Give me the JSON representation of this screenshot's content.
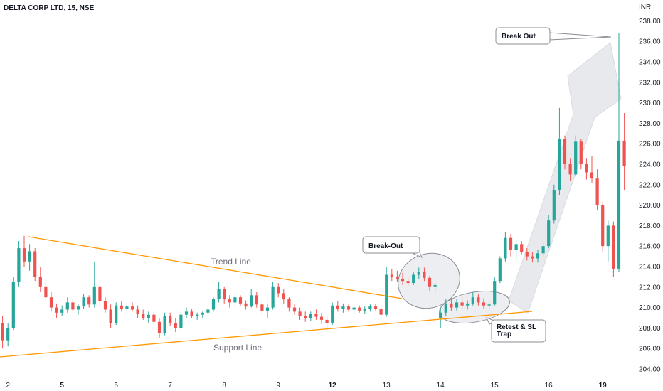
{
  "header": {
    "symbol": "DELTA CORP LTD, 15, NSE"
  },
  "currency_label": "INR",
  "colors": {
    "up": "#26a69a",
    "down": "#ef5350",
    "trend": "#ff9800",
    "arrow": "#e3e5ea",
    "bubble": "#e6e8ec"
  },
  "chart_data": {
    "type": "candlestick",
    "title": "DELTA CORP LTD, 15, NSE",
    "ylabel": "INR",
    "ylim": [
      203.5,
      239.5
    ],
    "y_ticks": [
      "204.00",
      "206.00",
      "208.00",
      "210.00",
      "212.00",
      "214.00",
      "216.00",
      "218.00",
      "220.00",
      "222.00",
      "224.00",
      "226.00",
      "228.00",
      "230.00",
      "232.00",
      "234.00",
      "236.00",
      "238.00"
    ],
    "x_ticks": [
      {
        "label": "2",
        "bar": 2,
        "bold": false
      },
      {
        "label": "5",
        "bar": 12,
        "bold": true
      },
      {
        "label": "6",
        "bar": 22,
        "bold": false
      },
      {
        "label": "7",
        "bar": 32,
        "bold": false
      },
      {
        "label": "8",
        "bar": 42,
        "bold": false
      },
      {
        "label": "9",
        "bar": 52,
        "bold": false
      },
      {
        "label": "12",
        "bar": 62,
        "bold": true
      },
      {
        "label": "13",
        "bar": 72,
        "bold": false
      },
      {
        "label": "14",
        "bar": 82,
        "bold": false
      },
      {
        "label": "15",
        "bar": 92,
        "bold": false
      },
      {
        "label": "16",
        "bar": 102,
        "bold": false
      },
      {
        "label": "19",
        "bar": 112,
        "bold": true
      }
    ],
    "candles": [
      [
        210.0,
        210.5,
        208.0,
        208.5
      ],
      [
        208.5,
        209.2,
        206.0,
        206.8
      ],
      [
        206.8,
        208.5,
        206.2,
        208.0
      ],
      [
        208.0,
        213.0,
        207.8,
        212.5
      ],
      [
        212.5,
        216.5,
        212.0,
        215.8
      ],
      [
        215.8,
        217.0,
        214.0,
        214.5
      ],
      [
        214.5,
        216.2,
        213.6,
        215.5
      ],
      [
        215.5,
        215.8,
        212.6,
        213.0
      ],
      [
        213.0,
        214.0,
        211.5,
        212.0
      ],
      [
        212.0,
        212.8,
        210.6,
        211.0
      ],
      [
        211.0,
        211.5,
        209.6,
        210.0
      ],
      [
        210.0,
        210.4,
        209.0,
        209.5
      ],
      [
        209.5,
        210.2,
        209.2,
        209.8
      ],
      [
        209.8,
        211.0,
        209.5,
        210.5
      ],
      [
        210.5,
        210.8,
        209.5,
        209.8
      ],
      [
        209.8,
        210.3,
        209.3,
        210.1
      ],
      [
        210.1,
        211.3,
        209.9,
        211.0
      ],
      [
        211.0,
        211.2,
        210.0,
        210.3
      ],
      [
        210.3,
        214.5,
        210.0,
        212.0
      ],
      [
        212.0,
        212.5,
        210.2,
        210.6
      ],
      [
        210.6,
        211.0,
        209.5,
        209.8
      ],
      [
        209.8,
        210.3,
        208.0,
        208.5
      ],
      [
        208.5,
        210.5,
        208.3,
        210.2
      ],
      [
        210.2,
        210.6,
        209.6,
        209.9
      ],
      [
        209.9,
        210.4,
        209.4,
        210.1
      ],
      [
        210.1,
        210.5,
        209.6,
        209.8
      ],
      [
        209.8,
        210.2,
        209.0,
        209.4
      ],
      [
        209.4,
        209.8,
        208.8,
        209.0
      ],
      [
        209.0,
        209.6,
        208.5,
        209.3
      ],
      [
        209.3,
        209.6,
        208.2,
        208.6
      ],
      [
        208.6,
        209.0,
        207.0,
        207.5
      ],
      [
        207.5,
        209.5,
        207.3,
        209.2
      ],
      [
        209.2,
        209.5,
        208.2,
        208.5
      ],
      [
        208.5,
        209.0,
        207.6,
        208.0
      ],
      [
        208.0,
        209.6,
        207.8,
        209.3
      ],
      [
        209.3,
        210.0,
        209.0,
        209.6
      ],
      [
        209.6,
        209.9,
        209.0,
        209.2
      ],
      [
        209.2,
        209.5,
        208.8,
        209.3
      ],
      [
        209.3,
        209.6,
        209.0,
        209.5
      ],
      [
        209.5,
        210.0,
        209.2,
        209.8
      ],
      [
        209.8,
        211.0,
        209.6,
        210.8
      ],
      [
        210.8,
        212.5,
        210.5,
        211.8
      ],
      [
        211.8,
        212.0,
        210.4,
        210.8
      ],
      [
        210.8,
        211.2,
        210.0,
        210.5
      ],
      [
        210.5,
        211.3,
        210.2,
        211.0
      ],
      [
        211.0,
        211.2,
        210.2,
        210.4
      ],
      [
        210.4,
        210.7,
        209.8,
        210.1
      ],
      [
        210.1,
        211.8,
        210.0,
        211.2
      ],
      [
        211.2,
        211.5,
        210.0,
        210.3
      ],
      [
        210.3,
        210.6,
        209.4,
        209.7
      ],
      [
        209.7,
        210.4,
        209.0,
        210.0
      ],
      [
        210.0,
        212.5,
        209.8,
        212.0
      ],
      [
        212.0,
        212.4,
        211.0,
        211.4
      ],
      [
        211.4,
        211.8,
        210.4,
        210.8
      ],
      [
        210.8,
        211.0,
        209.6,
        210.0
      ],
      [
        210.0,
        210.3,
        209.3,
        209.6
      ],
      [
        209.6,
        210.0,
        208.8,
        209.2
      ],
      [
        209.2,
        209.6,
        208.6,
        209.0
      ],
      [
        209.0,
        209.6,
        208.7,
        209.4
      ],
      [
        209.4,
        209.8,
        208.8,
        209.1
      ],
      [
        209.1,
        209.5,
        208.4,
        208.8
      ],
      [
        208.8,
        209.2,
        208.0,
        208.5
      ],
      [
        208.5,
        210.5,
        208.3,
        210.2
      ],
      [
        210.2,
        210.6,
        209.6,
        209.9
      ],
      [
        209.9,
        210.4,
        209.5,
        210.1
      ],
      [
        210.1,
        210.3,
        209.6,
        209.8
      ],
      [
        209.8,
        210.2,
        209.4,
        210.0
      ],
      [
        210.0,
        210.2,
        209.5,
        209.7
      ],
      [
        209.7,
        210.1,
        209.4,
        209.9
      ],
      [
        209.9,
        210.3,
        209.6,
        210.1
      ],
      [
        210.1,
        210.4,
        209.7,
        209.9
      ],
      [
        209.9,
        210.2,
        209.0,
        209.3
      ],
      [
        209.3,
        214.0,
        209.1,
        213.2
      ],
      [
        213.2,
        213.8,
        212.6,
        213.0
      ],
      [
        213.0,
        213.6,
        212.5,
        212.8
      ],
      [
        212.8,
        213.4,
        212.2,
        212.6
      ],
      [
        212.6,
        213.0,
        212.0,
        212.4
      ],
      [
        212.4,
        213.5,
        212.2,
        213.2
      ],
      [
        213.2,
        213.9,
        212.8,
        213.5
      ],
      [
        213.5,
        213.9,
        212.6,
        212.9
      ],
      [
        212.9,
        213.1,
        211.6,
        212.0
      ],
      [
        212.0,
        212.6,
        211.4,
        212.2
      ],
      [
        209.0,
        210.0,
        208.0,
        209.5
      ],
      [
        209.5,
        210.8,
        209.2,
        210.4
      ],
      [
        210.4,
        210.9,
        209.7,
        210.0
      ],
      [
        210.0,
        210.8,
        209.7,
        210.5
      ],
      [
        210.5,
        211.0,
        209.9,
        210.2
      ],
      [
        210.2,
        210.7,
        209.8,
        210.4
      ],
      [
        210.4,
        211.5,
        210.2,
        211.0
      ],
      [
        211.0,
        211.3,
        210.2,
        210.5
      ],
      [
        210.5,
        210.9,
        209.9,
        210.2
      ],
      [
        210.2,
        210.6,
        209.8,
        210.3
      ],
      [
        210.3,
        213.0,
        210.2,
        212.6
      ],
      [
        212.6,
        215.0,
        212.4,
        214.8
      ],
      [
        214.8,
        217.4,
        214.5,
        216.8
      ],
      [
        216.8,
        217.2,
        215.0,
        215.6
      ],
      [
        215.6,
        216.6,
        214.6,
        216.2
      ],
      [
        216.2,
        216.5,
        215.2,
        215.4
      ],
      [
        215.4,
        215.8,
        214.6,
        215.0
      ],
      [
        215.0,
        215.4,
        214.4,
        214.8
      ],
      [
        214.8,
        215.6,
        214.4,
        215.3
      ],
      [
        215.3,
        216.4,
        215.0,
        216.0
      ],
      [
        216.0,
        219.0,
        215.8,
        218.5
      ],
      [
        218.5,
        222.0,
        218.2,
        221.5
      ],
      [
        221.5,
        229.5,
        221.0,
        226.5
      ],
      [
        226.5,
        226.8,
        223.5,
        224.0
      ],
      [
        224.0,
        224.6,
        222.4,
        223.0
      ],
      [
        223.0,
        226.8,
        222.8,
        226.2
      ],
      [
        226.2,
        226.5,
        223.5,
        224.0
      ],
      [
        224.0,
        224.6,
        222.5,
        223.2
      ],
      [
        223.2,
        224.8,
        222.2,
        222.6
      ],
      [
        222.6,
        223.5,
        219.5,
        220.0
      ],
      [
        220.0,
        220.3,
        215.5,
        216.0
      ],
      [
        216.0,
        218.5,
        214.5,
        218.0
      ],
      [
        218.0,
        218.4,
        213.0,
        213.8
      ],
      [
        213.8,
        236.8,
        213.5,
        226.3
      ],
      [
        226.3,
        229.0,
        221.5,
        223.8
      ]
    ],
    "annotations": [
      {
        "label": "Trend Line"
      },
      {
        "label": "Support Line"
      },
      {
        "label": "Break-Out"
      },
      {
        "label": "Retest & SL Trap"
      },
      {
        "label": "Break Out"
      }
    ]
  }
}
